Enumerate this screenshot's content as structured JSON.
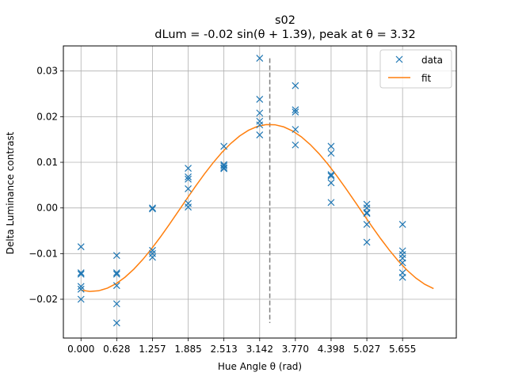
{
  "chart_data": {
    "type": "scatter",
    "title": "s02",
    "subtitle": "dLum = -0.02 sin(θ + 1.39), peak at θ = 3.32",
    "xlabel": "Hue Angle θ (rad)",
    "ylabel": "Delta Luminance contrast",
    "xlim": [
      -0.31,
      6.6
    ],
    "ylim": [
      -0.0285,
      0.0355
    ],
    "x_ticks": [
      0.0,
      0.628,
      1.257,
      1.885,
      2.513,
      3.142,
      3.77,
      4.398,
      5.027,
      5.655
    ],
    "x_tick_labels": [
      "0.000",
      "0.628",
      "1.257",
      "1.885",
      "2.513",
      "3.142",
      "3.770",
      "4.398",
      "5.027",
      "5.655"
    ],
    "y_ticks": [
      -0.02,
      -0.01,
      0.0,
      0.01,
      0.02,
      0.03
    ],
    "y_tick_labels": [
      "−0.02",
      "−0.01",
      "0.00",
      "0.01",
      "0.02",
      "0.03"
    ],
    "grid": true,
    "legend_position": "top-right",
    "series": [
      {
        "name": "data",
        "kind": "scatter",
        "marker": "x",
        "color": "#1f77b4",
        "points": [
          [
            0.0,
            -0.0085
          ],
          [
            0.0,
            -0.0142
          ],
          [
            0.0,
            -0.0145
          ],
          [
            0.0,
            -0.0172
          ],
          [
            0.0,
            -0.0178
          ],
          [
            0.0,
            -0.02
          ],
          [
            0.628,
            -0.0104
          ],
          [
            0.628,
            -0.0142
          ],
          [
            0.628,
            -0.0145
          ],
          [
            0.628,
            -0.017
          ],
          [
            0.628,
            -0.021
          ],
          [
            0.628,
            -0.0252
          ],
          [
            1.257,
            -0.0002
          ],
          [
            1.257,
            0.0
          ],
          [
            1.257,
            -0.0093
          ],
          [
            1.257,
            -0.01
          ],
          [
            1.257,
            -0.0108
          ],
          [
            1.885,
            0.0087
          ],
          [
            1.885,
            0.0068
          ],
          [
            1.885,
            0.0063
          ],
          [
            1.885,
            0.0042
          ],
          [
            1.885,
            0.001
          ],
          [
            1.885,
            0.0002
          ],
          [
            2.513,
            0.0135
          ],
          [
            2.513,
            0.0095
          ],
          [
            2.513,
            0.0092
          ],
          [
            2.513,
            0.0088
          ],
          [
            2.513,
            0.0086
          ],
          [
            3.142,
            0.0328
          ],
          [
            3.142,
            0.0238
          ],
          [
            3.142,
            0.0208
          ],
          [
            3.142,
            0.019
          ],
          [
            3.142,
            0.0182
          ],
          [
            3.142,
            0.016
          ],
          [
            3.77,
            0.0268
          ],
          [
            3.77,
            0.0215
          ],
          [
            3.77,
            0.021
          ],
          [
            3.77,
            0.0172
          ],
          [
            3.77,
            0.0138
          ],
          [
            4.398,
            0.0135
          ],
          [
            4.398,
            0.012
          ],
          [
            4.398,
            0.0073
          ],
          [
            4.398,
            0.007
          ],
          [
            4.398,
            0.0055
          ],
          [
            4.398,
            0.0012
          ],
          [
            5.027,
            0.0008
          ],
          [
            5.027,
            0.0
          ],
          [
            5.027,
            -0.001
          ],
          [
            5.027,
            -0.0012
          ],
          [
            5.027,
            -0.0036
          ],
          [
            5.027,
            -0.0075
          ],
          [
            5.655,
            -0.0036
          ],
          [
            5.655,
            -0.0094
          ],
          [
            5.655,
            -0.0102
          ],
          [
            5.655,
            -0.011
          ],
          [
            5.655,
            -0.012
          ],
          [
            5.655,
            -0.0142
          ],
          [
            5.655,
            -0.0152
          ]
        ]
      },
      {
        "name": "fit",
        "kind": "line",
        "color": "#ff7f0e",
        "amplitude": -0.0183,
        "phase": 1.39,
        "x_range": [
          0.0,
          6.2
        ]
      }
    ],
    "annotations": [
      {
        "kind": "vline",
        "x": 3.32,
        "y_range": [
          -0.0252,
          0.0328
        ],
        "color": "#808080",
        "style": "dashed"
      }
    ]
  }
}
